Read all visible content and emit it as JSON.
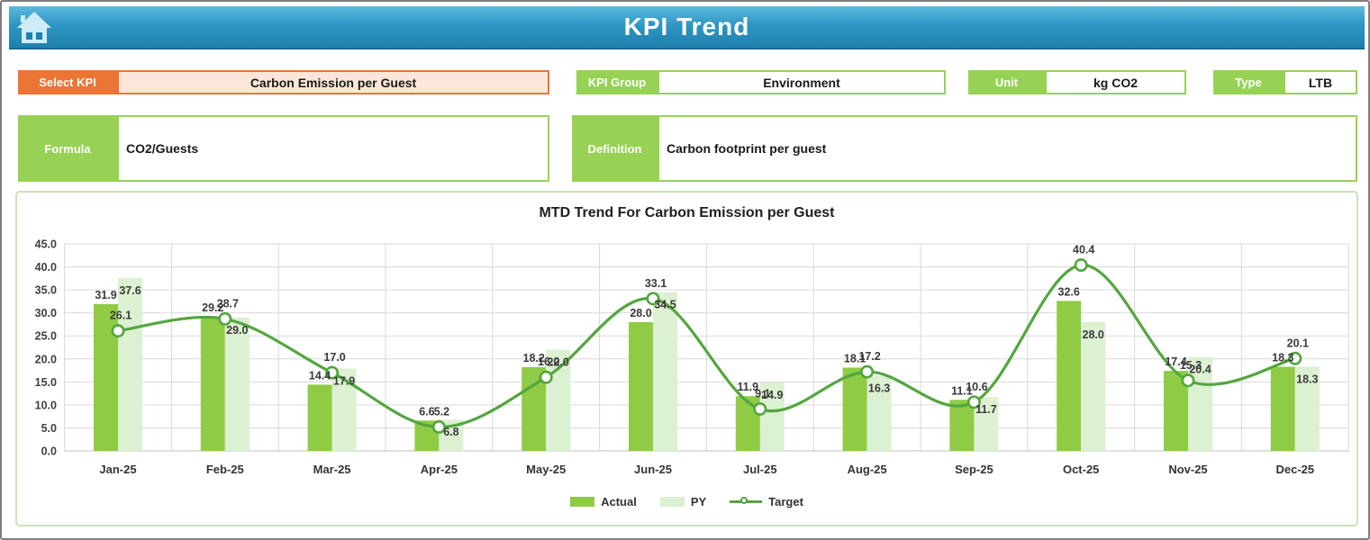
{
  "header": {
    "title": "KPI Trend",
    "home_icon": "home-icon"
  },
  "filters": {
    "select_kpi": {
      "label": "Select KPI",
      "value": "Carbon Emission per Guest"
    },
    "kpi_group": {
      "label": "KPI Group",
      "value": "Environment"
    },
    "unit": {
      "label": "Unit",
      "value": "kg CO2"
    },
    "type": {
      "label": "Type",
      "value": "LTB"
    },
    "formula": {
      "label": "Formula",
      "value": "CO2/Guests"
    },
    "definition": {
      "label": "Definition",
      "value": "Carbon footprint per guest"
    }
  },
  "chart_data": {
    "type": "bar",
    "subtype": "combo bar+smooth-line",
    "title": "MTD Trend For Carbon Emission per Guest",
    "categories": [
      "Jan-25",
      "Feb-25",
      "Mar-25",
      "Apr-25",
      "May-25",
      "Jun-25",
      "Jul-25",
      "Aug-25",
      "Sep-25",
      "Oct-25",
      "Nov-25",
      "Dec-25"
    ],
    "series": [
      {
        "name": "Actual",
        "chart": "bar",
        "color": "#8fcb44",
        "values": [
          31.9,
          29.2,
          14.4,
          6.6,
          18.2,
          28.0,
          11.9,
          18.1,
          11.1,
          32.6,
          17.4,
          18.3
        ]
      },
      {
        "name": "PY",
        "chart": "bar",
        "color": "#dcf0d2",
        "values": [
          37.6,
          29.0,
          17.9,
          6.8,
          22.0,
          34.5,
          14.9,
          16.3,
          11.7,
          28.0,
          20.4,
          18.3
        ]
      },
      {
        "name": "Target",
        "chart": "line",
        "color": "#53a63e",
        "marker": "open-circle",
        "values": [
          26.1,
          28.7,
          17.0,
          5.2,
          16.0,
          33.1,
          9.1,
          17.2,
          10.6,
          40.4,
          15.3,
          20.1
        ]
      }
    ],
    "ylim": [
      0,
      45
    ],
    "ytick_step": 5,
    "ytick_labels": [
      "0.0",
      "5.0",
      "10.0",
      "15.0",
      "20.0",
      "25.0",
      "30.0",
      "35.0",
      "40.0",
      "45.0"
    ],
    "grid": true,
    "data_labels": true,
    "legend_position": "bottom"
  },
  "colors": {
    "header_teal": "#2e96c4",
    "accent_orange": "#ec7434",
    "orange_fill": "#fbe7da",
    "accent_green": "#97d254",
    "panel_border_green": "#c9e3b8",
    "bar_actual": "#8fcb44",
    "bar_py": "#dcf0d2",
    "line_target": "#53a63e",
    "gridline": "#d9d9d9",
    "label_text": "#3a3a3a"
  }
}
